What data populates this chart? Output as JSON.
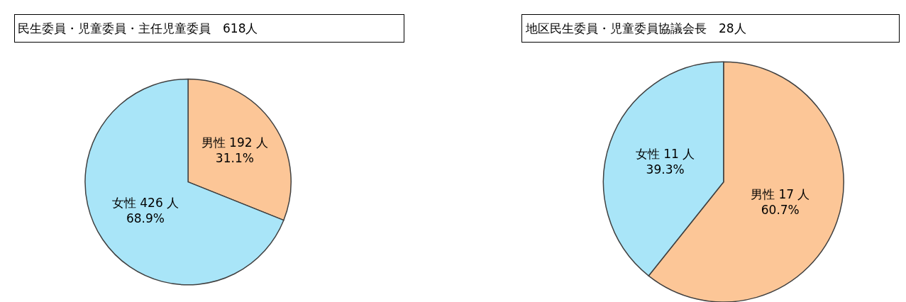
{
  "chart_data": [
    {
      "type": "pie",
      "title": "民生委員・児童委員・主任児童委員　618人",
      "categories": [
        "男性",
        "女性"
      ],
      "values": [
        192,
        426
      ],
      "colors": [
        "#fcc697",
        "#a9e5f8"
      ],
      "value_labels": [
        "192 人\n31.1%",
        "426 人\n68.9%"
      ],
      "legend": false
    },
    {
      "type": "pie",
      "title": "地区民生委員・児童委員協議会長　28人",
      "categories": [
        "男性",
        "女性"
      ],
      "values": [
        17,
        11
      ],
      "colors": [
        "#fcc697",
        "#a9e5f8"
      ],
      "value_labels": [
        "17 人\n60.7%",
        "11 人\n39.3%"
      ],
      "legend": false
    }
  ]
}
